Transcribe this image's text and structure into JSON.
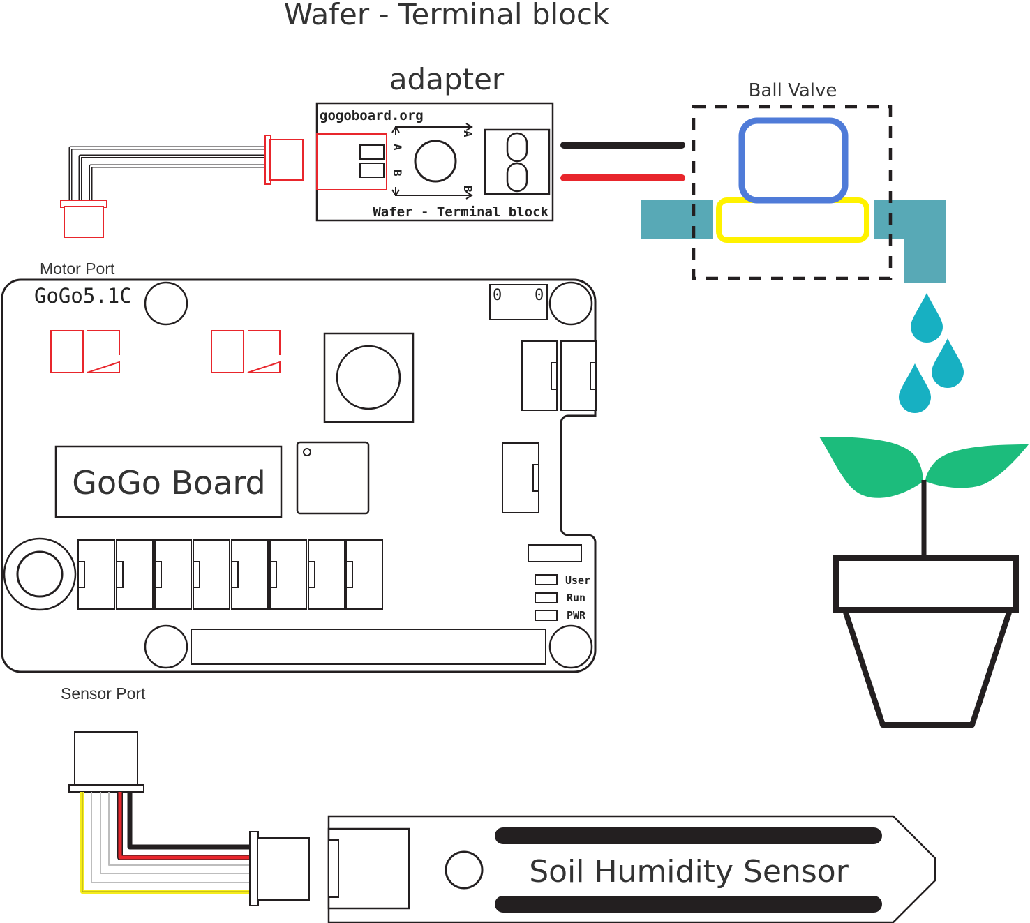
{
  "titles": {
    "line1": "Wafer - Terminal block",
    "line2": "adapter"
  },
  "adapter": {
    "site": "gogoboard.org",
    "name": "Wafer - Terminal block",
    "pin_a": "A",
    "pin_b": "B"
  },
  "ball_valve": {
    "label": "Ball Valve"
  },
  "board": {
    "model": "GoGo5.1C",
    "name": "GoGo Board",
    "motor_port_label": "Motor Port",
    "sensor_port_label": "Sensor Port",
    "led_user": "User",
    "led_run": "Run",
    "led_pwr": "PWR",
    "switch_left": "0",
    "switch_right": "0"
  },
  "sensor": {
    "name": "Soil Humidity Sensor"
  },
  "colors": {
    "wire_red": "#e8262c",
    "wire_black": "#231f20",
    "wire_yellow": "#f5ec1c",
    "connector_red": "#e8262c",
    "valve_blue": "#4f7bd8",
    "valve_yellow": "#fff200",
    "pipe_teal": "#58a9b6",
    "drop_teal": "#17b0c2",
    "leaf_green": "#1cbc7c"
  }
}
